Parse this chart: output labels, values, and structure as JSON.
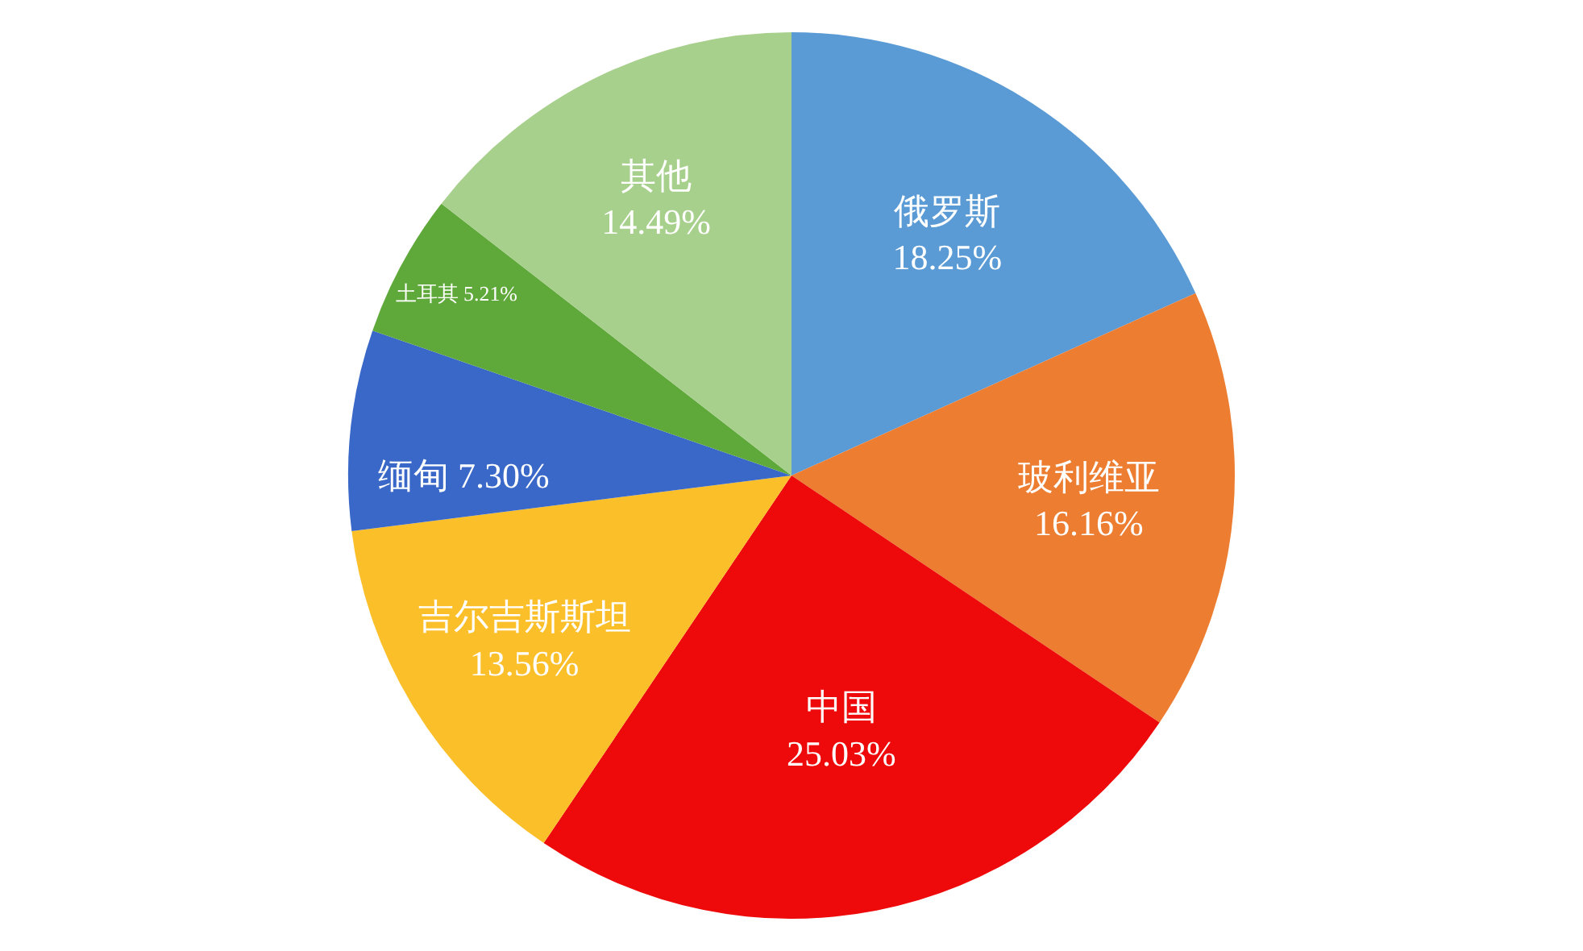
{
  "chart_data": {
    "type": "pie",
    "categories": [
      "俄罗斯",
      "玻利维亚",
      "中国",
      "吉尔吉斯斯坦",
      "缅甸",
      "土耳其",
      "其他"
    ],
    "values": [
      18.25,
      16.16,
      25.03,
      13.56,
      7.3,
      5.21,
      14.49
    ],
    "value_labels": [
      "18.25%",
      "16.16%",
      "25.03%",
      "13.56%",
      "7.30%",
      "5.21%",
      "14.49%"
    ],
    "colors": [
      "#5b9bd5",
      "#ed7d31",
      "#ee0a0a",
      "#fbbf2a",
      "#3a68c8",
      "#5fa83a",
      "#a8d08d"
    ],
    "legend": false
  }
}
